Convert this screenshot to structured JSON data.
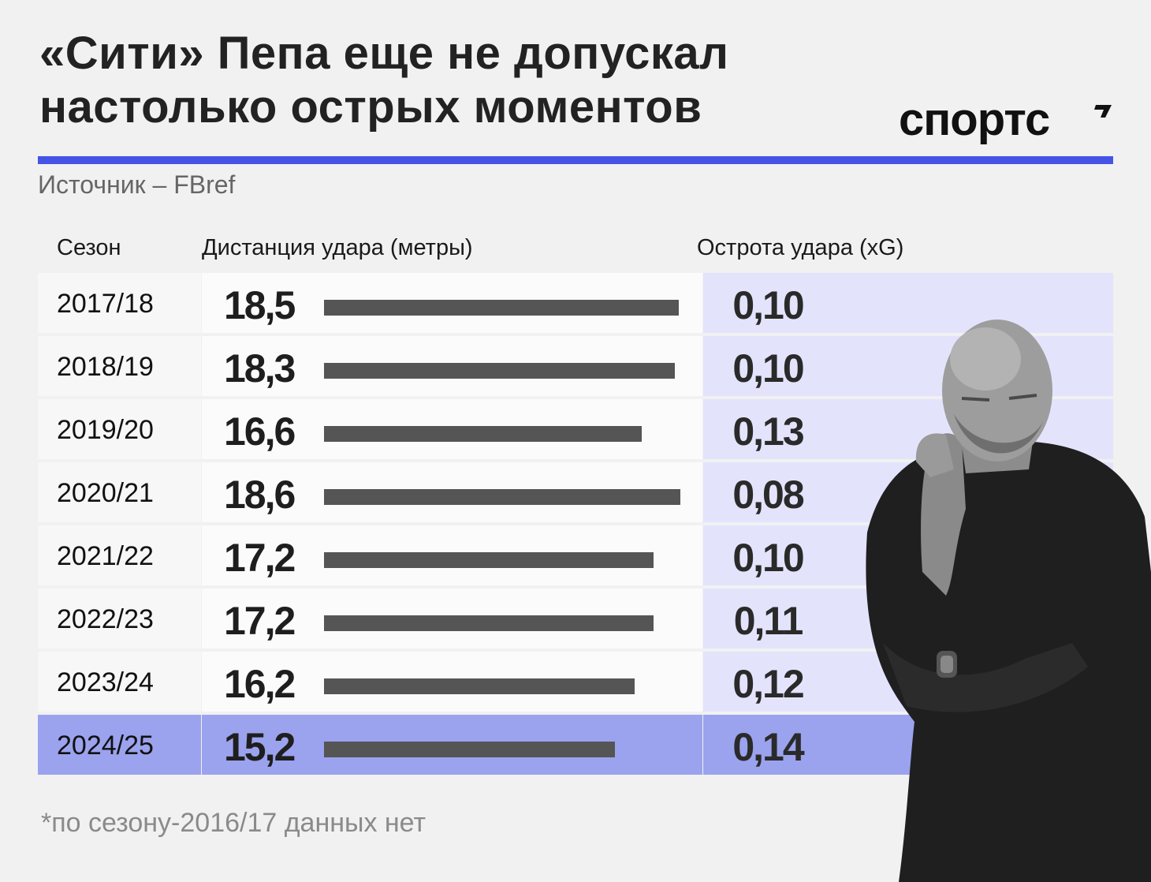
{
  "title": {
    "line1": "«Сити» Пепа еще не допускал",
    "line2": "настолько острых моментов"
  },
  "logo": "спортс",
  "source": "Источник – FBref",
  "colors": {
    "accent": "#4553e6",
    "bar": "#555555",
    "highlight_row": "#9ba3ee",
    "xg_column": "#e3e4fc"
  },
  "chart_data": {
    "type": "table",
    "columns": [
      "Сезон",
      "Дистанция удара (метры)",
      "Острота удара (xG)"
    ],
    "distance_label": "Дистанция удара (метры)",
    "xg_label": "Острота удара (xG)",
    "season_label": "Сезон",
    "bar_scale_max": 18.6,
    "rows": [
      {
        "season": "2017/18",
        "distance": 18.5,
        "distance_text": "18,5",
        "xg": 0.1,
        "xg_text": "0,10",
        "highlight": false
      },
      {
        "season": "2018/19",
        "distance": 18.3,
        "distance_text": "18,3",
        "xg": 0.1,
        "xg_text": "0,10",
        "highlight": false
      },
      {
        "season": "2019/20",
        "distance": 16.6,
        "distance_text": "16,6",
        "xg": 0.13,
        "xg_text": "0,13",
        "highlight": false
      },
      {
        "season": "2020/21",
        "distance": 18.6,
        "distance_text": "18,6",
        "xg": 0.08,
        "xg_text": "0,08",
        "highlight": false
      },
      {
        "season": "2021/22",
        "distance": 17.2,
        "distance_text": "17,2",
        "xg": 0.1,
        "xg_text": "0,10",
        "highlight": false
      },
      {
        "season": "2022/23",
        "distance": 17.2,
        "distance_text": "17,2",
        "xg": 0.11,
        "xg_text": "0,11",
        "highlight": false
      },
      {
        "season": "2023/24",
        "distance": 16.2,
        "distance_text": "16,2",
        "xg": 0.12,
        "xg_text": "0,12",
        "highlight": false
      },
      {
        "season": "2024/25",
        "distance": 15.2,
        "distance_text": "15,2",
        "xg": 0.14,
        "xg_text": "0,14",
        "highlight": true
      }
    ]
  },
  "footnote": "*по сезону-2016/17 данных нет"
}
